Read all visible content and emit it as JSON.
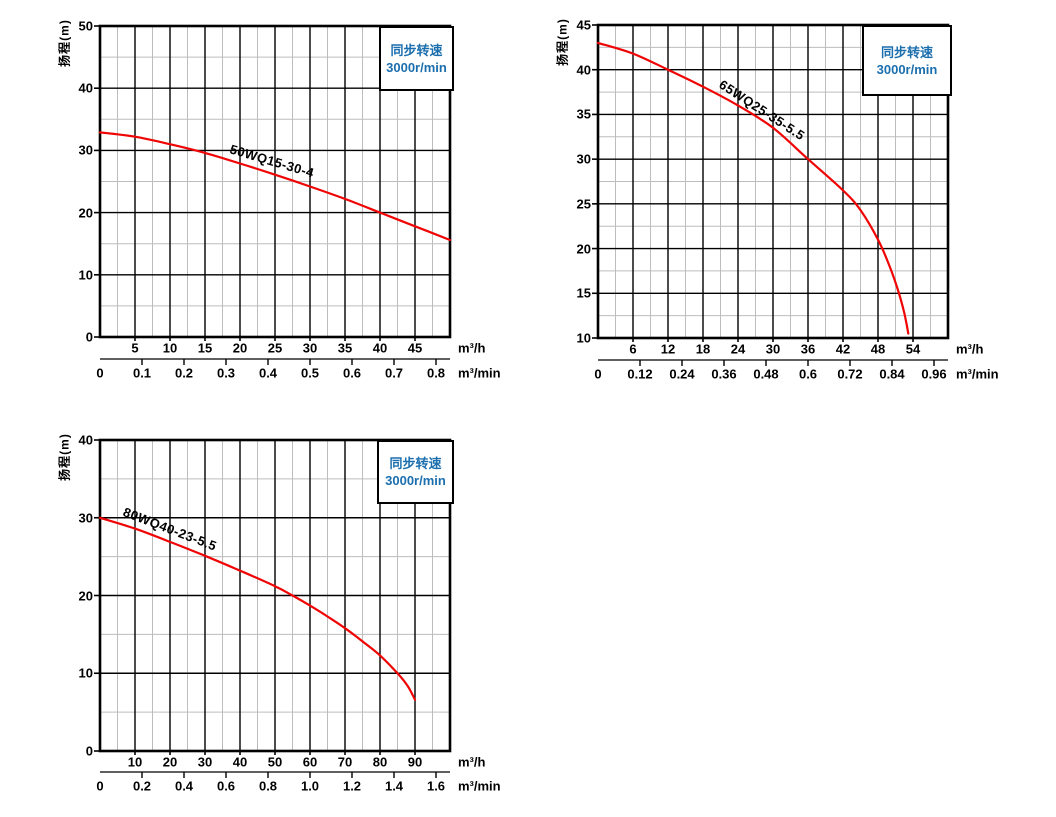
{
  "colors": {
    "background": "#ffffff",
    "curve": "#f00505",
    "legend_text": "#1c6fae",
    "grid_major": "#000000",
    "grid_minor": "#bdbdbd",
    "frame": "#000000",
    "axis_text": "#000000"
  },
  "chart_data": [
    {
      "type": "line",
      "title": "",
      "model": "50WQ15-30-4",
      "ylabel": "扬程(m)",
      "legend": {
        "line1": "同步转速",
        "line2": "3000r/min",
        "position": "top-right"
      },
      "x_axis": {
        "unit_primary": "m³/h",
        "unit_secondary": "m³/min",
        "range_m3h": [
          0,
          50
        ],
        "major_step": 5,
        "minor_step": 2.5,
        "ticks_m3h": [
          5,
          10,
          15,
          20,
          25,
          30,
          35,
          40,
          45
        ],
        "ticks_m3min": [
          "0",
          "0.1",
          "0.2",
          "0.3",
          "0.4",
          "0.5",
          "0.6",
          "0.7",
          "0.8"
        ],
        "m3h_per_m3min": 60
      },
      "y_axis": {
        "range": [
          0,
          50
        ],
        "major_step": 10,
        "minor_step": 5,
        "ticks": [
          0,
          10,
          20,
          30,
          40,
          50
        ]
      },
      "grid": {
        "major": "black",
        "minor": "gray"
      },
      "series": [
        {
          "name": "50WQ15-30-4",
          "points_m3h_vs_m": [
            [
              0,
              32.9
            ],
            [
              5,
              32.2
            ],
            [
              10,
              31.0
            ],
            [
              15,
              29.6
            ],
            [
              20,
              27.9
            ],
            [
              25,
              26.1
            ],
            [
              30,
              24.2
            ],
            [
              35,
              22.2
            ],
            [
              40,
              20.0
            ],
            [
              45,
              17.8
            ],
            [
              50,
              15.6
            ]
          ]
        }
      ]
    },
    {
      "type": "line",
      "title": "",
      "model": "65WQ25-35-5.5",
      "ylabel": "扬程(m)",
      "legend": {
        "line1": "同步转速",
        "line2": "3000r/min",
        "position": "top-right"
      },
      "x_axis": {
        "unit_primary": "m³/h",
        "unit_secondary": "m³/min",
        "range_m3h": [
          0,
          60
        ],
        "major_step": 6,
        "minor_step": 3,
        "ticks_m3h": [
          6,
          12,
          18,
          24,
          30,
          36,
          42,
          48,
          54
        ],
        "ticks_m3min": [
          "0",
          "0.12",
          "0.24",
          "0.36",
          "0.48",
          "0.6",
          "0.72",
          "0.84",
          "0.96"
        ],
        "m3h_per_m3min": 60
      },
      "y_axis": {
        "range": [
          10,
          45
        ],
        "major_step": 5,
        "minor_step": 2.5,
        "ticks": [
          10,
          15,
          20,
          25,
          30,
          35,
          40,
          45
        ]
      },
      "grid": {
        "major": "black",
        "minor": "gray"
      },
      "series": [
        {
          "name": "65WQ25-35-5.5",
          "points_m3h_vs_m": [
            [
              0,
              43.0
            ],
            [
              6,
              41.8
            ],
            [
              12,
              40.0
            ],
            [
              18,
              38.1
            ],
            [
              24,
              36.0
            ],
            [
              30,
              33.5
            ],
            [
              36,
              30.0
            ],
            [
              42,
              26.5
            ],
            [
              45,
              24.3
            ],
            [
              48,
              21.0
            ],
            [
              50,
              18.0
            ],
            [
              51.5,
              15.2
            ],
            [
              52.5,
              12.8
            ],
            [
              53.2,
              10.5
            ]
          ]
        }
      ]
    },
    {
      "type": "line",
      "title": "",
      "model": "80WQ40-23-5.5",
      "ylabel": "扬程(m)",
      "legend": {
        "line1": "同步转速",
        "line2": "3000r/min",
        "position": "top-right"
      },
      "x_axis": {
        "unit_primary": "m³/h",
        "unit_secondary": "m³/min",
        "range_m3h": [
          0,
          100
        ],
        "major_step": 10,
        "minor_step": 5,
        "ticks_m3h": [
          10,
          20,
          30,
          40,
          50,
          60,
          70,
          80,
          90
        ],
        "ticks_m3min": [
          "0",
          "0.2",
          "0.4",
          "0.6",
          "0.8",
          "1.0",
          "1.2",
          "1.4",
          "1.6"
        ],
        "m3h_per_m3min": 60
      },
      "y_axis": {
        "range": [
          0,
          40
        ],
        "major_step": 10,
        "minor_step": 5,
        "ticks": [
          0,
          10,
          20,
          30,
          40
        ]
      },
      "grid": {
        "major": "black",
        "minor": "gray"
      },
      "series": [
        {
          "name": "80WQ40-23-5.5",
          "points_m3h_vs_m": [
            [
              0,
              30.0
            ],
            [
              10,
              28.6
            ],
            [
              20,
              26.9
            ],
            [
              30,
              25.1
            ],
            [
              40,
              23.2
            ],
            [
              50,
              21.2
            ],
            [
              55,
              20.0
            ],
            [
              60,
              18.7
            ],
            [
              65,
              17.3
            ],
            [
              70,
              15.8
            ],
            [
              75,
              14.1
            ],
            [
              80,
              12.3
            ],
            [
              85,
              10.0
            ],
            [
              88,
              8.3
            ],
            [
              90,
              6.6
            ]
          ]
        }
      ]
    }
  ]
}
